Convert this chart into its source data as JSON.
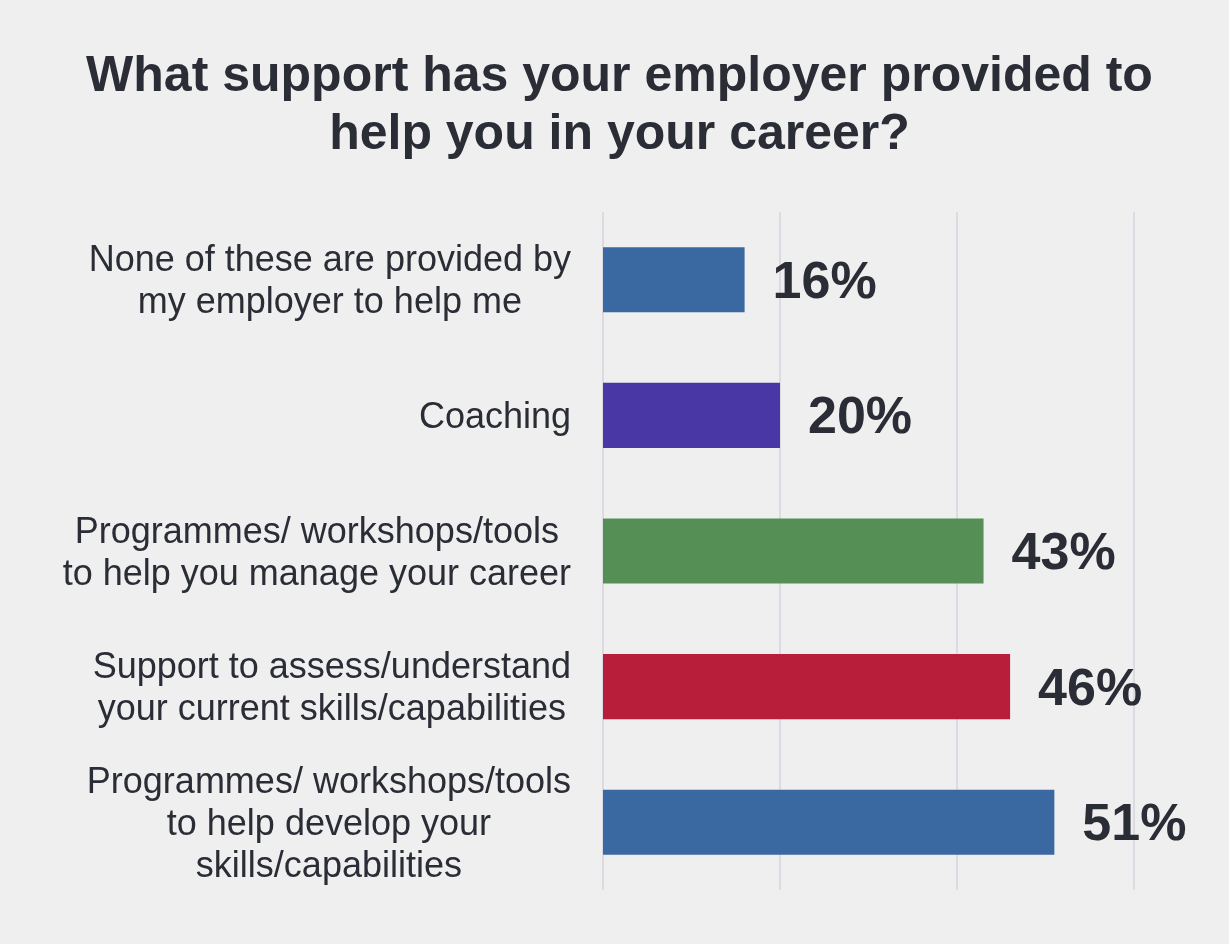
{
  "chart_data": {
    "type": "bar",
    "orientation": "horizontal",
    "title": "What support has your employer provided to help you in your career?",
    "categories": [
      "None of these are provided by my employer to help me",
      "Coaching",
      "Programmes/ workshops/tools to help you manage your career",
      "Support to assess/understand your current skills/capabilities",
      "Programmes/ workshops/tools to help develop your skills/capabilities"
    ],
    "values": [
      16,
      20,
      43,
      46,
      51
    ],
    "colors": [
      "#3a68a0",
      "#4837a5",
      "#558f55",
      "#b81d3a",
      "#3a68a0"
    ],
    "value_labels": [
      "16%",
      "20%",
      "43%",
      "46%",
      "51%"
    ],
    "xlim": [
      0,
      60
    ],
    "xticks": [
      {
        "value": 0,
        "label": null
      },
      {
        "value": 20,
        "label": null
      },
      {
        "value": 40,
        "label": null
      },
      {
        "value": 60,
        "label": null
      }
    ],
    "grid": "x",
    "tick_labels": "y"
  }
}
